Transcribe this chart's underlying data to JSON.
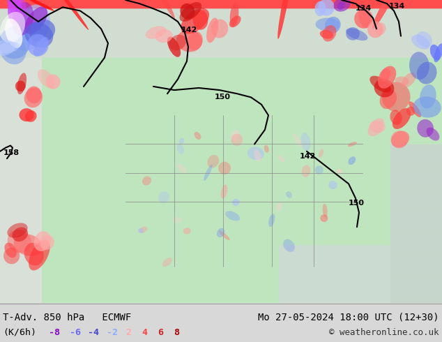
{
  "title_left": "T-Adv. 850 hPa   ECMWF",
  "title_right": "Mo 27-05-2024 18:00 UTC (12+30)",
  "unit_label": "(K/6h)",
  "legend_values": [
    "-8",
    "-6",
    "-4",
    "-2",
    "2",
    "4",
    "6",
    "8"
  ],
  "legend_colors": [
    "#8800cc",
    "#6666ff",
    "#4444cc",
    "#88aaff",
    "#ffaaaa",
    "#ff4444",
    "#cc2222",
    "#aa0000"
  ],
  "copyright": "© weatheronline.co.uk",
  "bg_color": "#d8d8d8",
  "figsize": [
    6.34,
    4.9
  ],
  "dpi": 100,
  "font_size_title": 10,
  "font_size_legend": 9.5,
  "font_size_copyright": 9
}
